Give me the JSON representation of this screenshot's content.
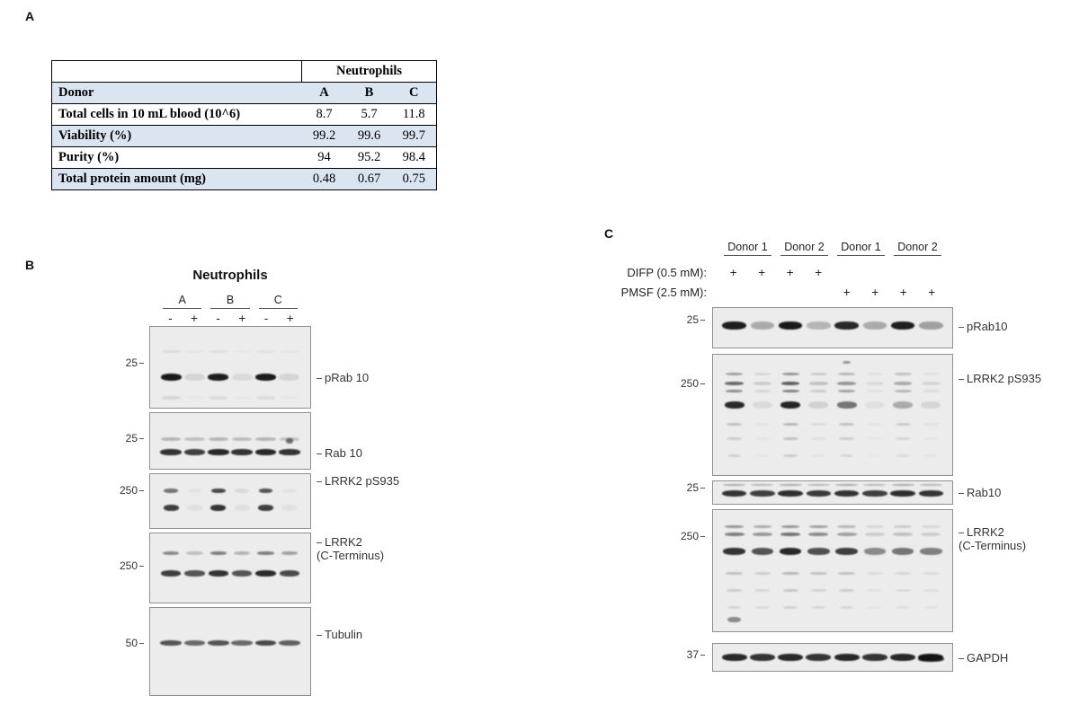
{
  "panel_a": {
    "label": "A",
    "table": {
      "group_header": "Neutrophils",
      "donor_label": "Donor",
      "donors": [
        "A",
        "B",
        "C"
      ],
      "rows": [
        {
          "label": "Total cells in 10 mL blood (10^6)",
          "values": [
            "8.7",
            "5.7",
            "11.8"
          ]
        },
        {
          "label": "Viability (%)",
          "values": [
            "99.2",
            "99.6",
            "99.7"
          ]
        },
        {
          "label": "Purity (%)",
          "values": [
            "94",
            "95.2",
            "98.4"
          ]
        },
        {
          "label": "Total protein amount (mg)",
          "values": [
            "0.48",
            "0.67",
            "0.75"
          ]
        }
      ]
    }
  },
  "panel_b": {
    "label": "B",
    "title": "Neutrophils",
    "groups": [
      "A",
      "B",
      "C"
    ],
    "lane_signs": [
      "-",
      "+",
      "-",
      "+",
      "-",
      "+"
    ],
    "lanes": 6,
    "blots": [
      {
        "marker": "25",
        "label": "pRab 10",
        "label2": "",
        "bands": [
          {
            "y": 0.3,
            "h": 3,
            "w": 0.8,
            "lanes": [
              0.08,
              0.03,
              0.06,
              0.02,
              0.05,
              0.03
            ]
          },
          {
            "y": 0.62,
            "h": 8,
            "w": 0.88,
            "lanes": [
              0.97,
              0.1,
              0.95,
              0.08,
              0.96,
              0.1
            ]
          },
          {
            "y": 0.88,
            "h": 4,
            "w": 0.8,
            "lanes": [
              0.1,
              0.02,
              0.08,
              0.02,
              0.08,
              0.02
            ]
          }
        ]
      },
      {
        "marker": "25",
        "label": "Rab 10",
        "label2": "",
        "bands": [
          {
            "y": 0.46,
            "h": 4,
            "w": 0.85,
            "lanes": [
              0.25,
              0.2,
              0.25,
              0.22,
              0.25,
              0.2
            ]
          },
          {
            "y": 0.7,
            "h": 7,
            "w": 0.9,
            "lanes": [
              0.85,
              0.8,
              0.9,
              0.85,
              0.9,
              0.85
            ]
          },
          {
            "y": 0.5,
            "h": 6,
            "w": 0.28,
            "lanes": [
              0,
              0,
              0,
              0,
              0,
              0.55
            ]
          }
        ]
      },
      {
        "marker": "250",
        "label": "LRRK2 pS935",
        "label2": "",
        "bands": [
          {
            "y": 0.3,
            "h": 5,
            "w": 0.6,
            "lanes": [
              0.55,
              0.04,
              0.75,
              0.08,
              0.7,
              0.04
            ]
          },
          {
            "y": 0.62,
            "h": 7,
            "w": 0.65,
            "lanes": [
              0.8,
              0.05,
              0.85,
              0.06,
              0.8,
              0.05
            ]
          }
        ]
      },
      {
        "marker": "250",
        "label": "LRRK2",
        "label2": "(C-Terminus)",
        "bands": [
          {
            "y": 0.28,
            "h": 4,
            "w": 0.7,
            "lanes": [
              0.45,
              0.2,
              0.5,
              0.25,
              0.5,
              0.35
            ]
          },
          {
            "y": 0.58,
            "h": 7,
            "w": 0.85,
            "lanes": [
              0.8,
              0.7,
              0.85,
              0.7,
              0.9,
              0.75
            ]
          }
        ]
      },
      {
        "marker": "50",
        "label": "Tubulin",
        "label2": "",
        "bands": [
          {
            "y": 0.4,
            "h": 6,
            "w": 0.9,
            "lanes": [
              0.7,
              0.6,
              0.7,
              0.6,
              0.75,
              0.65
            ]
          }
        ]
      }
    ]
  },
  "panel_c": {
    "label": "C",
    "groups": [
      "Donor 1",
      "Donor 2",
      "Donor 1",
      "Donor 2"
    ],
    "treatments": [
      {
        "label": "DIFP (0.5 mM):",
        "signs": [
          "+",
          "+",
          "+",
          "+",
          "",
          "",
          "",
          ""
        ]
      },
      {
        "label": "PMSF (2.5 mM):",
        "signs": [
          "",
          "",
          "",
          "",
          "+",
          "+",
          "+",
          "+"
        ]
      }
    ],
    "lanes": 8,
    "blots": [
      {
        "marker": "25",
        "label": "pRab10",
        "label2": "",
        "bands": [
          {
            "y": 0.45,
            "h": 9,
            "w": 0.85,
            "lanes": [
              0.95,
              0.3,
              0.97,
              0.25,
              0.9,
              0.3,
              0.95,
              0.35
            ]
          }
        ]
      },
      {
        "marker": "250",
        "label": "LRRK2 pS935",
        "label2": "",
        "bands": [
          {
            "y": 0.06,
            "h": 3,
            "w": 0.3,
            "lanes": [
              0,
              0,
              0,
              0,
              0.4,
              0,
              0,
              0
            ]
          },
          {
            "y": 0.16,
            "h": 3,
            "w": 0.6,
            "lanes": [
              0.35,
              0.1,
              0.4,
              0.15,
              0.25,
              0.05,
              0.2,
              0.05
            ]
          },
          {
            "y": 0.24,
            "h": 4,
            "w": 0.65,
            "lanes": [
              0.6,
              0.15,
              0.65,
              0.2,
              0.4,
              0.08,
              0.3,
              0.1
            ]
          },
          {
            "y": 0.3,
            "h": 3,
            "w": 0.6,
            "lanes": [
              0.45,
              0.1,
              0.5,
              0.15,
              0.35,
              0.05,
              0.25,
              0.08
            ]
          },
          {
            "y": 0.42,
            "h": 8,
            "w": 0.7,
            "lanes": [
              0.9,
              0.08,
              0.92,
              0.12,
              0.55,
              0.05,
              0.3,
              0.1
            ]
          },
          {
            "y": 0.58,
            "h": 3,
            "w": 0.55,
            "lanes": [
              0.2,
              0.05,
              0.25,
              0.08,
              0.2,
              0.03,
              0.15,
              0.05
            ]
          },
          {
            "y": 0.7,
            "h": 3,
            "w": 0.55,
            "lanes": [
              0.15,
              0.04,
              0.2,
              0.06,
              0.15,
              0.03,
              0.1,
              0.04
            ]
          },
          {
            "y": 0.84,
            "h": 3,
            "w": 0.5,
            "lanes": [
              0.12,
              0.03,
              0.15,
              0.05,
              0.1,
              0.02,
              0.08,
              0.03
            ]
          }
        ]
      },
      {
        "marker": "25",
        "label": "Rab10",
        "label2": "",
        "bands": [
          {
            "y": 0.15,
            "h": 2,
            "w": 0.8,
            "lanes": [
              0.3,
              0.25,
              0.3,
              0.25,
              0.3,
              0.25,
              0.3,
              0.25
            ]
          },
          {
            "y": 0.55,
            "h": 7,
            "w": 0.88,
            "lanes": [
              0.85,
              0.8,
              0.88,
              0.82,
              0.85,
              0.8,
              0.88,
              0.85
            ]
          }
        ]
      },
      {
        "marker": "250",
        "label": "LRRK2",
        "label2": "(C-Terminus)",
        "bands": [
          {
            "y": 0.14,
            "h": 3,
            "w": 0.65,
            "lanes": [
              0.4,
              0.3,
              0.4,
              0.35,
              0.25,
              0.1,
              0.15,
              0.1
            ]
          },
          {
            "y": 0.2,
            "h": 4,
            "w": 0.7,
            "lanes": [
              0.5,
              0.4,
              0.55,
              0.45,
              0.35,
              0.15,
              0.2,
              0.15
            ]
          },
          {
            "y": 0.34,
            "h": 8,
            "w": 0.78,
            "lanes": [
              0.85,
              0.7,
              0.9,
              0.72,
              0.8,
              0.45,
              0.55,
              0.5
            ]
          },
          {
            "y": 0.52,
            "h": 3,
            "w": 0.6,
            "lanes": [
              0.2,
              0.15,
              0.25,
              0.2,
              0.2,
              0.08,
              0.1,
              0.08
            ]
          },
          {
            "y": 0.66,
            "h": 3,
            "w": 0.55,
            "lanes": [
              0.15,
              0.1,
              0.18,
              0.12,
              0.15,
              0.05,
              0.08,
              0.06
            ]
          },
          {
            "y": 0.8,
            "h": 3,
            "w": 0.5,
            "lanes": [
              0.1,
              0.08,
              0.12,
              0.1,
              0.1,
              0.04,
              0.06,
              0.05
            ]
          },
          {
            "y": 0.9,
            "h": 6,
            "w": 0.5,
            "lanes": [
              0.45,
              0,
              0,
              0,
              0,
              0,
              0,
              0
            ]
          }
        ]
      },
      {
        "marker": "37",
        "label": "GAPDH",
        "label2": "",
        "bands": [
          {
            "y": 0.5,
            "h": 8,
            "w": 0.9,
            "lanes": [
              0.9,
              0.85,
              0.9,
              0.85,
              0.9,
              0.85,
              0.9,
              1.0
            ]
          },
          {
            "y": 0.55,
            "h": 6,
            "w": 0.95,
            "lanes": [
              0,
              0,
              0,
              0,
              0,
              0,
              0,
              0.8
            ]
          }
        ]
      }
    ]
  }
}
